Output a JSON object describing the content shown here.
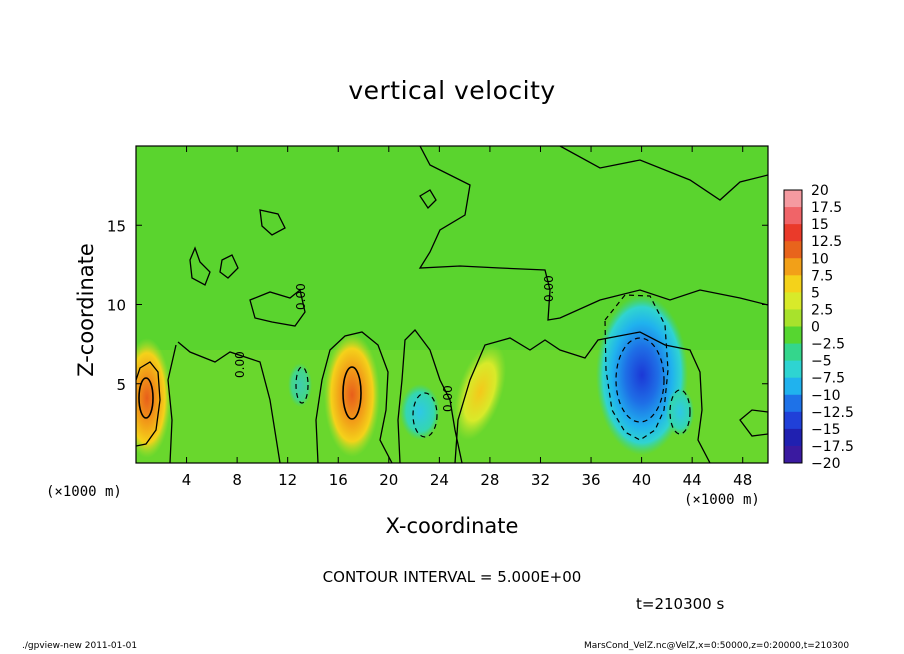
{
  "chart_data": {
    "type": "heatmap",
    "title": "vertical velocity",
    "xlabel": "X-coordinate",
    "ylabel": "Z-coordinate",
    "x_unit_label": "(×1000 m)",
    "xlim": [
      0,
      50
    ],
    "ylim": [
      0,
      20
    ],
    "x_ticks": [
      4,
      8,
      12,
      16,
      20,
      24,
      28,
      32,
      36,
      40,
      44,
      48
    ],
    "y_ticks": [
      5,
      10,
      15
    ],
    "contour_interval_text": "CONTOUR INTERVAL = 5.000E+00",
    "time_text": "t=210300 s",
    "contour_labels": [
      "0.00",
      "0.00",
      "0.00",
      "0.00"
    ],
    "colorbar": {
      "levels": [
        20,
        17.5,
        15,
        12.5,
        10,
        7.5,
        5,
        2.5,
        0,
        -2.5,
        -5,
        -7.5,
        -10,
        -12.5,
        -15,
        -17.5,
        -20
      ],
      "colors": [
        "#f59aa0",
        "#f06468",
        "#ea3a2a",
        "#e8641c",
        "#f2a018",
        "#f4d21a",
        "#d8ea2a",
        "#a8e22c",
        "#56d630",
        "#34d68c",
        "#2ed4d2",
        "#20b2ee",
        "#1e72e8",
        "#2040d8",
        "#2020b0",
        "#3a1aa0",
        "#6a16a8"
      ]
    },
    "features": [
      {
        "kind": "updraft",
        "x": 0.8,
        "z": 4.0,
        "peak": 10
      },
      {
        "kind": "updraft",
        "x": 17.0,
        "z": 4.5,
        "peak": 10
      },
      {
        "kind": "updraft",
        "x": 27.0,
        "z": 5.5,
        "peak": 7.5
      },
      {
        "kind": "downdraft",
        "x": 40.0,
        "z": 5.5,
        "peak": -12.5
      },
      {
        "kind": "downdraft",
        "x": 22.0,
        "z": 3.5,
        "peak": -5
      }
    ]
  },
  "footer": {
    "left": "./gpview-new  2011-01-01",
    "right": "MarsCond_VelZ.nc@VelZ,x=0:50000,z=0:20000,t=210300"
  }
}
